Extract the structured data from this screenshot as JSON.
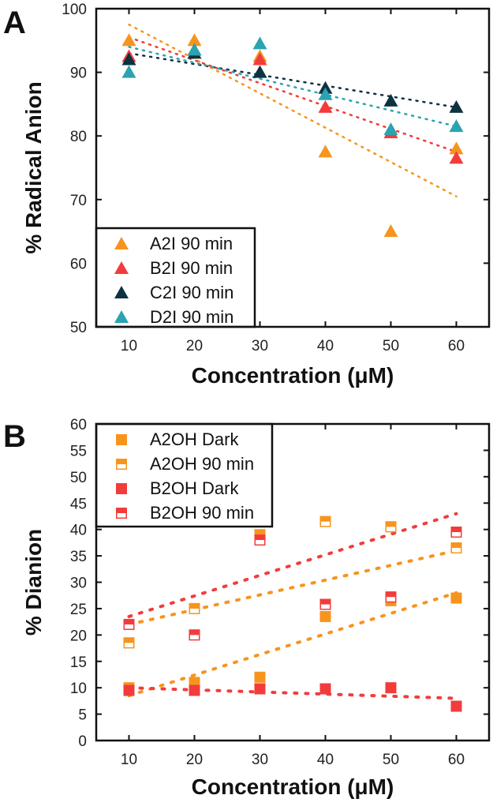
{
  "chart_data": [
    {
      "type": "scatter",
      "panel": "A",
      "xlabel": "Concentration (μM)",
      "ylabel": "% Radical Anion",
      "xlim": [
        5,
        65
      ],
      "ylim": [
        50,
        100
      ],
      "xticks": [
        10,
        20,
        30,
        40,
        50,
        60
      ],
      "yticks": [
        50,
        60,
        70,
        80,
        90,
        100
      ],
      "legend_position": "bottom-left",
      "marker": "triangle",
      "x": [
        10,
        20,
        30,
        40,
        50,
        60
      ],
      "series": [
        {
          "name": "A2I 90 min",
          "color": "#f7941d",
          "values": [
            95,
            95,
            92.5,
            77.5,
            65,
            78
          ],
          "trend": [
            97.5,
            70.5
          ]
        },
        {
          "name": "B2I 90 min",
          "color": "#f23c3c",
          "values": [
            92.5,
            93.5,
            92,
            84.5,
            80.5,
            76.5
          ],
          "trend": [
            95.5,
            77.5
          ]
        },
        {
          "name": "C2I 90 min",
          "color": "#0d3340",
          "values": [
            92,
            93,
            90,
            87.5,
            85.5,
            84.5
          ],
          "trend": [
            93,
            84.5
          ]
        },
        {
          "name": "D2I 90 min",
          "color": "#2ba3b0",
          "values": [
            90,
            93.5,
            94.5,
            86.5,
            81,
            81.5
          ],
          "trend": [
            94,
            81.5
          ]
        }
      ]
    },
    {
      "type": "scatter",
      "panel": "B",
      "xlabel": "Concentration (μM)",
      "ylabel": "% Dianion",
      "xlim": [
        5,
        65
      ],
      "ylim": [
        0,
        60
      ],
      "xticks": [
        10,
        20,
        30,
        40,
        50,
        60
      ],
      "yticks": [
        0,
        5,
        10,
        15,
        20,
        25,
        30,
        35,
        40,
        45,
        50,
        55,
        60
      ],
      "legend_position": "top-left",
      "marker": "square",
      "x": [
        10,
        20,
        30,
        40,
        50,
        60
      ],
      "series": [
        {
          "name": "A2OH Dark",
          "color": "#f7941d",
          "fill": "full",
          "values": [
            10,
            11,
            12,
            23.5,
            26.5,
            27
          ],
          "trend": [
            8.5,
            28
          ]
        },
        {
          "name": "A2OH 90 min",
          "color": "#f7941d",
          "fill": "half",
          "values": [
            18.5,
            25,
            39,
            41.5,
            40.5,
            36.5
          ],
          "trend": [
            22,
            36
          ]
        },
        {
          "name": "B2OH Dark",
          "color": "#f23c3c",
          "fill": "full",
          "values": [
            9.5,
            9.5,
            9.8,
            9.8,
            10,
            6.5
          ],
          "trend": [
            10,
            8
          ]
        },
        {
          "name": "B2OH 90 min",
          "color": "#f23c3c",
          "fill": "half",
          "values": [
            22,
            20,
            38,
            25.8,
            27.2,
            39.5
          ],
          "trend": [
            23.5,
            43
          ]
        }
      ]
    }
  ]
}
